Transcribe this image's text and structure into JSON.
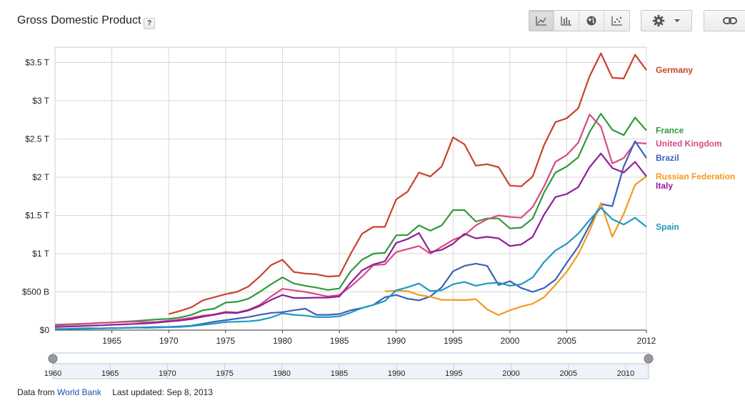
{
  "header": {
    "title": "Gross Domestic Product",
    "help_label": "?"
  },
  "toolbar": {
    "chart_types": [
      "line-chart-icon",
      "bar-chart-icon",
      "globe-map-icon",
      "scatter-plot-icon"
    ],
    "active": "line-chart-icon",
    "settings_icon": "gear-icon",
    "link_icon": "link-icon"
  },
  "footer": {
    "source_prefix": "Data from",
    "source_link": "World Bank",
    "updated": "Last updated: Sep 8, 2013"
  },
  "slider": {
    "tick_labels": [
      "1960",
      "1965",
      "1970",
      "1975",
      "1980",
      "1985",
      "1990",
      "1995",
      "2000",
      "2005",
      "2010"
    ],
    "range": [
      1960,
      2012
    ]
  },
  "chart_data": {
    "type": "line",
    "title": "Gross Domestic Product",
    "xlabel": "",
    "ylabel": "",
    "xlim": [
      1960,
      2012
    ],
    "ylim": [
      0,
      3.7
    ],
    "x_tick_labels": [
      "1965",
      "1970",
      "1975",
      "1980",
      "1985",
      "1990",
      "1995",
      "2000",
      "2005",
      "2012"
    ],
    "y_ticks": [
      {
        "value": 0,
        "label": "$0"
      },
      {
        "value": 0.5,
        "label": "$500 B"
      },
      {
        "value": 1,
        "label": "$1 T"
      },
      {
        "value": 1.5,
        "label": "$1.5 T"
      },
      {
        "value": 2,
        "label": "$2 T"
      },
      {
        "value": 2.5,
        "label": "$2.5 T"
      },
      {
        "value": 3,
        "label": "$3 T"
      },
      {
        "value": 3.5,
        "label": "$3.5 T"
      }
    ],
    "grid": true,
    "legend_placement": "right",
    "series": [
      {
        "name": "Germany",
        "color": "#c9422a",
        "start": 1970,
        "values": [
          0.21,
          0.25,
          0.3,
          0.39,
          0.43,
          0.47,
          0.5,
          0.57,
          0.7,
          0.85,
          0.92,
          0.76,
          0.74,
          0.73,
          0.7,
          0.71,
          1.0,
          1.26,
          1.35,
          1.35,
          1.71,
          1.81,
          2.06,
          2.01,
          2.14,
          2.52,
          2.43,
          2.15,
          2.17,
          2.13,
          1.89,
          1.88,
          2.01,
          2.42,
          2.72,
          2.77,
          2.9,
          3.32,
          3.62,
          3.3,
          3.29,
          3.6,
          3.4
        ]
      },
      {
        "name": "France",
        "color": "#2e9a3a",
        "start": 1960,
        "values": [
          0.062,
          0.068,
          0.076,
          0.085,
          0.094,
          0.101,
          0.11,
          0.119,
          0.13,
          0.14,
          0.148,
          0.165,
          0.2,
          0.26,
          0.28,
          0.36,
          0.37,
          0.41,
          0.5,
          0.6,
          0.69,
          0.61,
          0.58,
          0.555,
          0.525,
          0.545,
          0.77,
          0.92,
          1.0,
          1.01,
          1.24,
          1.245,
          1.37,
          1.3,
          1.37,
          1.57,
          1.57,
          1.42,
          1.46,
          1.46,
          1.33,
          1.34,
          1.46,
          1.8,
          2.06,
          2.14,
          2.26,
          2.59,
          2.83,
          2.62,
          2.55,
          2.78,
          2.61
        ]
      },
      {
        "name": "United Kingdom",
        "color": "#d64b85",
        "start": 1960,
        "values": [
          0.072,
          0.077,
          0.081,
          0.086,
          0.094,
          0.1,
          0.106,
          0.11,
          0.104,
          0.107,
          0.124,
          0.14,
          0.163,
          0.19,
          0.205,
          0.24,
          0.23,
          0.265,
          0.33,
          0.44,
          0.54,
          0.52,
          0.5,
          0.47,
          0.44,
          0.46,
          0.57,
          0.7,
          0.85,
          0.86,
          1.02,
          1.06,
          1.1,
          1.0,
          1.09,
          1.18,
          1.24,
          1.37,
          1.45,
          1.5,
          1.48,
          1.47,
          1.61,
          1.88,
          2.2,
          2.29,
          2.45,
          2.82,
          2.66,
          2.18,
          2.25,
          2.45,
          2.44
        ]
      },
      {
        "name": "Brazil",
        "color": "#3a62b8",
        "start": 1960,
        "values": [
          0.015,
          0.015,
          0.02,
          0.024,
          0.022,
          0.027,
          0.028,
          0.033,
          0.036,
          0.04,
          0.042,
          0.049,
          0.058,
          0.083,
          0.11,
          0.13,
          0.15,
          0.17,
          0.2,
          0.225,
          0.235,
          0.26,
          0.28,
          0.2,
          0.2,
          0.21,
          0.26,
          0.29,
          0.33,
          0.43,
          0.46,
          0.41,
          0.39,
          0.44,
          0.56,
          0.77,
          0.84,
          0.87,
          0.84,
          0.59,
          0.64,
          0.55,
          0.5,
          0.55,
          0.66,
          0.88,
          1.09,
          1.37,
          1.65,
          1.62,
          2.14,
          2.47,
          2.25
        ]
      },
      {
        "name": "Russian Federation",
        "color": "#f39a1e",
        "start": 1989,
        "values": [
          0.506,
          0.517,
          0.51,
          0.46,
          0.435,
          0.395,
          0.395,
          0.392,
          0.405,
          0.271,
          0.196,
          0.26,
          0.307,
          0.345,
          0.43,
          0.591,
          0.764,
          0.99,
          1.3,
          1.66,
          1.22,
          1.52,
          1.9,
          2.01
        ]
      },
      {
        "name": "Italy",
        "color": "#8e1e9a",
        "start": 1960,
        "values": [
          0.04,
          0.045,
          0.05,
          0.058,
          0.063,
          0.07,
          0.075,
          0.081,
          0.087,
          0.098,
          0.113,
          0.124,
          0.145,
          0.176,
          0.2,
          0.228,
          0.224,
          0.257,
          0.315,
          0.395,
          0.46,
          0.42,
          0.42,
          0.425,
          0.425,
          0.44,
          0.62,
          0.78,
          0.86,
          0.9,
          1.14,
          1.19,
          1.27,
          1.02,
          1.05,
          1.13,
          1.26,
          1.2,
          1.22,
          1.2,
          1.1,
          1.12,
          1.22,
          1.51,
          1.74,
          1.78,
          1.87,
          2.13,
          2.31,
          2.12,
          2.06,
          2.2,
          2.01
        ]
      },
      {
        "name": "Spain",
        "color": "#1e98c2",
        "start": 1960,
        "values": [
          0.012,
          0.014,
          0.016,
          0.019,
          0.022,
          0.025,
          0.03,
          0.034,
          0.03,
          0.034,
          0.038,
          0.042,
          0.052,
          0.068,
          0.085,
          0.105,
          0.11,
          0.115,
          0.13,
          0.165,
          0.22,
          0.2,
          0.19,
          0.17,
          0.17,
          0.18,
          0.23,
          0.29,
          0.33,
          0.38,
          0.52,
          0.56,
          0.61,
          0.51,
          0.52,
          0.6,
          0.63,
          0.58,
          0.61,
          0.62,
          0.58,
          0.6,
          0.69,
          0.89,
          1.04,
          1.13,
          1.26,
          1.44,
          1.6,
          1.45,
          1.38,
          1.47,
          1.35
        ]
      }
    ]
  }
}
